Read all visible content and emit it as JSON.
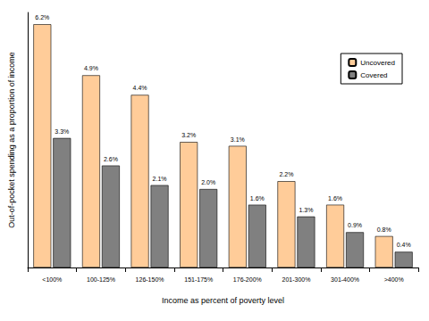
{
  "chart_data": {
    "type": "bar",
    "x_label": "Income as percent of poverty level",
    "y_label": "Out-of-pocket spending as a proportion of income",
    "categories": [
      "<100%",
      "100-125%",
      "126-150%",
      "151-175%",
      "176-200%",
      "201-300%",
      "301-400%",
      ">400%"
    ],
    "series": [
      {
        "name": "Uncovered",
        "color": "#ffcc99",
        "values": [
          6.2,
          4.9,
          4.4,
          3.2,
          3.1,
          2.2,
          1.6,
          0.8
        ],
        "value_labels": [
          "6.2%",
          "4.9%",
          "4.4%",
          "3.2%",
          "3.1%",
          "2.2%",
          "1.6%",
          "0.8%"
        ]
      },
      {
        "name": "Covered",
        "color": "#808080",
        "values": [
          3.3,
          2.6,
          2.1,
          2.0,
          1.6,
          1.3,
          0.9,
          0.4
        ],
        "value_labels": [
          "3.3%",
          "2.6%",
          "2.1%",
          "2.0%",
          "1.6%",
          "1.3%",
          "0.9%",
          "0.4%"
        ]
      }
    ],
    "ylim": [
      0,
      6.5
    ],
    "yticks": [],
    "grid": false,
    "legend": "upper right",
    "data_labels": true,
    "tick_labels": "x"
  }
}
